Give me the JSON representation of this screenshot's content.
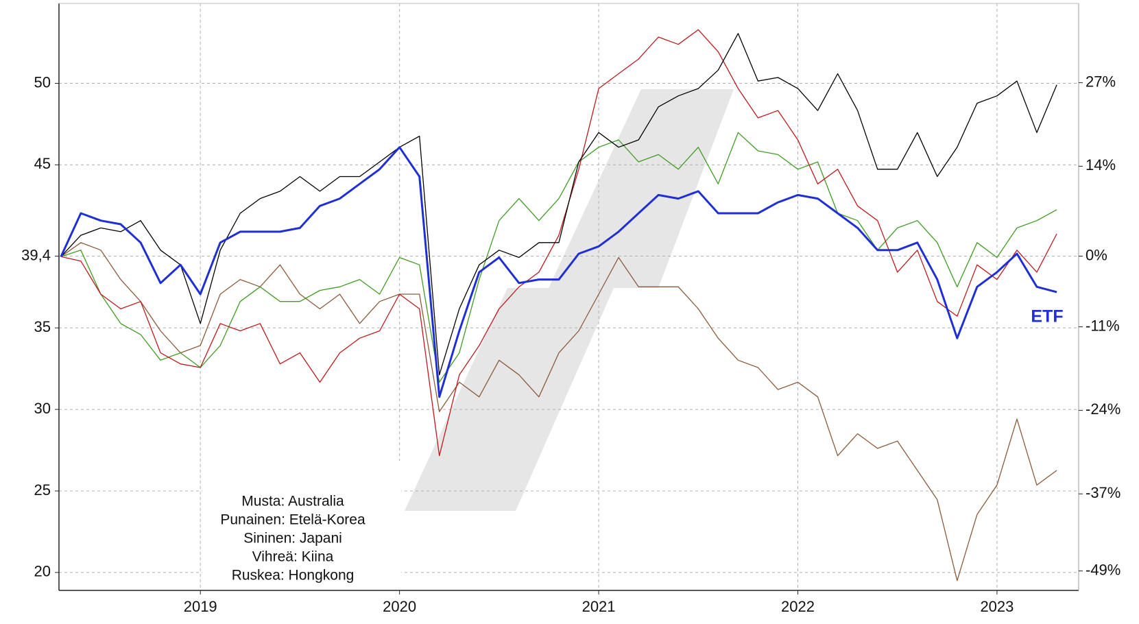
{
  "chart_data": {
    "type": "line",
    "annotation": "ETF",
    "x": [
      2018.3,
      2018.4,
      2018.5,
      2018.6,
      2018.7,
      2018.8,
      2018.9,
      2019.0,
      2019.1,
      2019.2,
      2019.3,
      2019.4,
      2019.5,
      2019.6,
      2019.7,
      2019.8,
      2019.9,
      2020.0,
      2020.1,
      2020.2,
      2020.3,
      2020.4,
      2020.5,
      2020.6,
      2020.7,
      2020.8,
      2020.9,
      2021.0,
      2021.1,
      2021.2,
      2021.3,
      2021.4,
      2021.5,
      2021.6,
      2021.7,
      2021.8,
      2021.9,
      2022.0,
      2022.1,
      2022.2,
      2022.3,
      2022.4,
      2022.5,
      2022.6,
      2022.7,
      2022.8,
      2022.9,
      2023.0,
      2023.1,
      2023.2,
      2023.3
    ],
    "xlim": [
      2018.29,
      2023.41
    ],
    "xticks": [
      2019,
      2020,
      2021,
      2022,
      2023
    ],
    "ylim": [
      18.9,
      54.9
    ],
    "yticks": [
      20,
      25,
      30,
      35,
      {
        "value": 39.4,
        "label": "39,4"
      },
      45,
      50
    ],
    "y2lim": [
      -52.03,
      39.34
    ],
    "y2ticks": [
      {
        "value": 27,
        "label": "27%"
      },
      {
        "value": 14,
        "label": "14%"
      },
      {
        "value": 0,
        "label": "0%"
      },
      {
        "value": -11,
        "label": "-11%"
      },
      {
        "value": -24,
        "label": "-24%"
      },
      {
        "value": -37,
        "label": "-37%"
      },
      {
        "value": -49,
        "label": "-49%"
      }
    ],
    "grid": true,
    "legend": "lower left",
    "series": [
      {
        "name": "Ruskea: Hongkong",
        "color": "#8b5a3a",
        "values": [
          39.37,
          40.23,
          39.77,
          37.97,
          36.62,
          34.82,
          33.47,
          33.92,
          37.07,
          37.97,
          37.52,
          38.87,
          37.07,
          36.17,
          37.07,
          35.27,
          36.62,
          37.07,
          37.07,
          29.86,
          31.67,
          30.77,
          33.02,
          32.12,
          30.77,
          33.47,
          34.82,
          37.07,
          39.32,
          37.52,
          37.52,
          37.52,
          36.17,
          34.37,
          33.02,
          32.57,
          31.22,
          31.67,
          30.77,
          27.16,
          28.51,
          27.61,
          28.06,
          26.26,
          24.46,
          19.5,
          23.56,
          25.36,
          29.41,
          25.36,
          26.26
        ]
      },
      {
        "name": "Vihreä: Kiina",
        "color": "#3f9c22",
        "values": [
          39.37,
          39.77,
          37.07,
          35.27,
          34.59,
          33.02,
          33.47,
          32.57,
          33.92,
          36.62,
          37.52,
          36.62,
          36.62,
          37.3,
          37.52,
          37.97,
          37.07,
          39.32,
          38.87,
          31.67,
          33.47,
          37.97,
          41.58,
          42.93,
          41.58,
          42.93,
          45.18,
          46.08,
          46.53,
          45.18,
          45.63,
          44.73,
          46.08,
          43.83,
          46.98,
          45.86,
          45.63,
          44.73,
          45.18,
          42.03,
          41.58,
          39.77,
          41.13,
          41.58,
          40.23,
          37.52,
          40.23,
          39.32,
          41.13,
          41.58,
          42.25
        ]
      },
      {
        "name": "Punainen: Etelä-Korea",
        "color": "#c0181c",
        "values": [
          39.37,
          39.1,
          37.07,
          36.17,
          36.62,
          33.47,
          32.79,
          32.57,
          35.27,
          34.82,
          35.27,
          32.79,
          33.47,
          31.67,
          33.47,
          34.37,
          34.82,
          37.07,
          36.17,
          27.16,
          32.12,
          33.92,
          36.17,
          37.52,
          38.42,
          40.68,
          44.73,
          49.68,
          50.59,
          51.49,
          52.84,
          52.39,
          53.29,
          51.94,
          49.68,
          47.88,
          48.33,
          46.53,
          43.83,
          44.73,
          42.48,
          41.58,
          38.42,
          39.77,
          36.62,
          35.72,
          38.87,
          37.97,
          39.77,
          38.42,
          40.77
        ]
      },
      {
        "name": "Musta: Australia",
        "color": "#000000",
        "values": [
          39.37,
          40.68,
          41.13,
          40.9,
          41.58,
          39.77,
          38.87,
          35.27,
          39.77,
          42.03,
          42.93,
          43.38,
          44.28,
          43.38,
          44.28,
          44.28,
          45.18,
          46.08,
          46.76,
          32.12,
          36.17,
          38.87,
          39.77,
          39.32,
          40.23,
          40.23,
          45.18,
          46.98,
          46.08,
          46.53,
          48.56,
          49.23,
          49.68,
          50.81,
          53.06,
          50.14,
          50.36,
          49.68,
          48.33,
          50.59,
          48.33,
          44.73,
          44.73,
          46.98,
          44.28,
          46.08,
          48.78,
          49.23,
          50.14,
          46.98,
          49.91
        ]
      },
      {
        "name": "Sininen: Japani",
        "color": "#1f2fd6",
        "values": [
          39.37,
          42.03,
          41.58,
          41.36,
          40.23,
          37.75,
          38.87,
          37.07,
          40.23,
          40.9,
          40.9,
          40.9,
          41.13,
          42.48,
          42.93,
          43.83,
          44.73,
          46.08,
          44.28,
          30.77,
          34.82,
          38.42,
          39.32,
          37.75,
          37.97,
          37.97,
          39.55,
          40.0,
          40.9,
          42.03,
          43.15,
          42.93,
          43.38,
          42.03,
          42.03,
          42.03,
          42.7,
          43.15,
          42.93,
          42.03,
          41.13,
          39.77,
          39.77,
          40.23,
          37.97,
          34.37,
          37.52,
          38.42,
          39.55,
          37.52,
          37.2
        ]
      }
    ]
  }
}
